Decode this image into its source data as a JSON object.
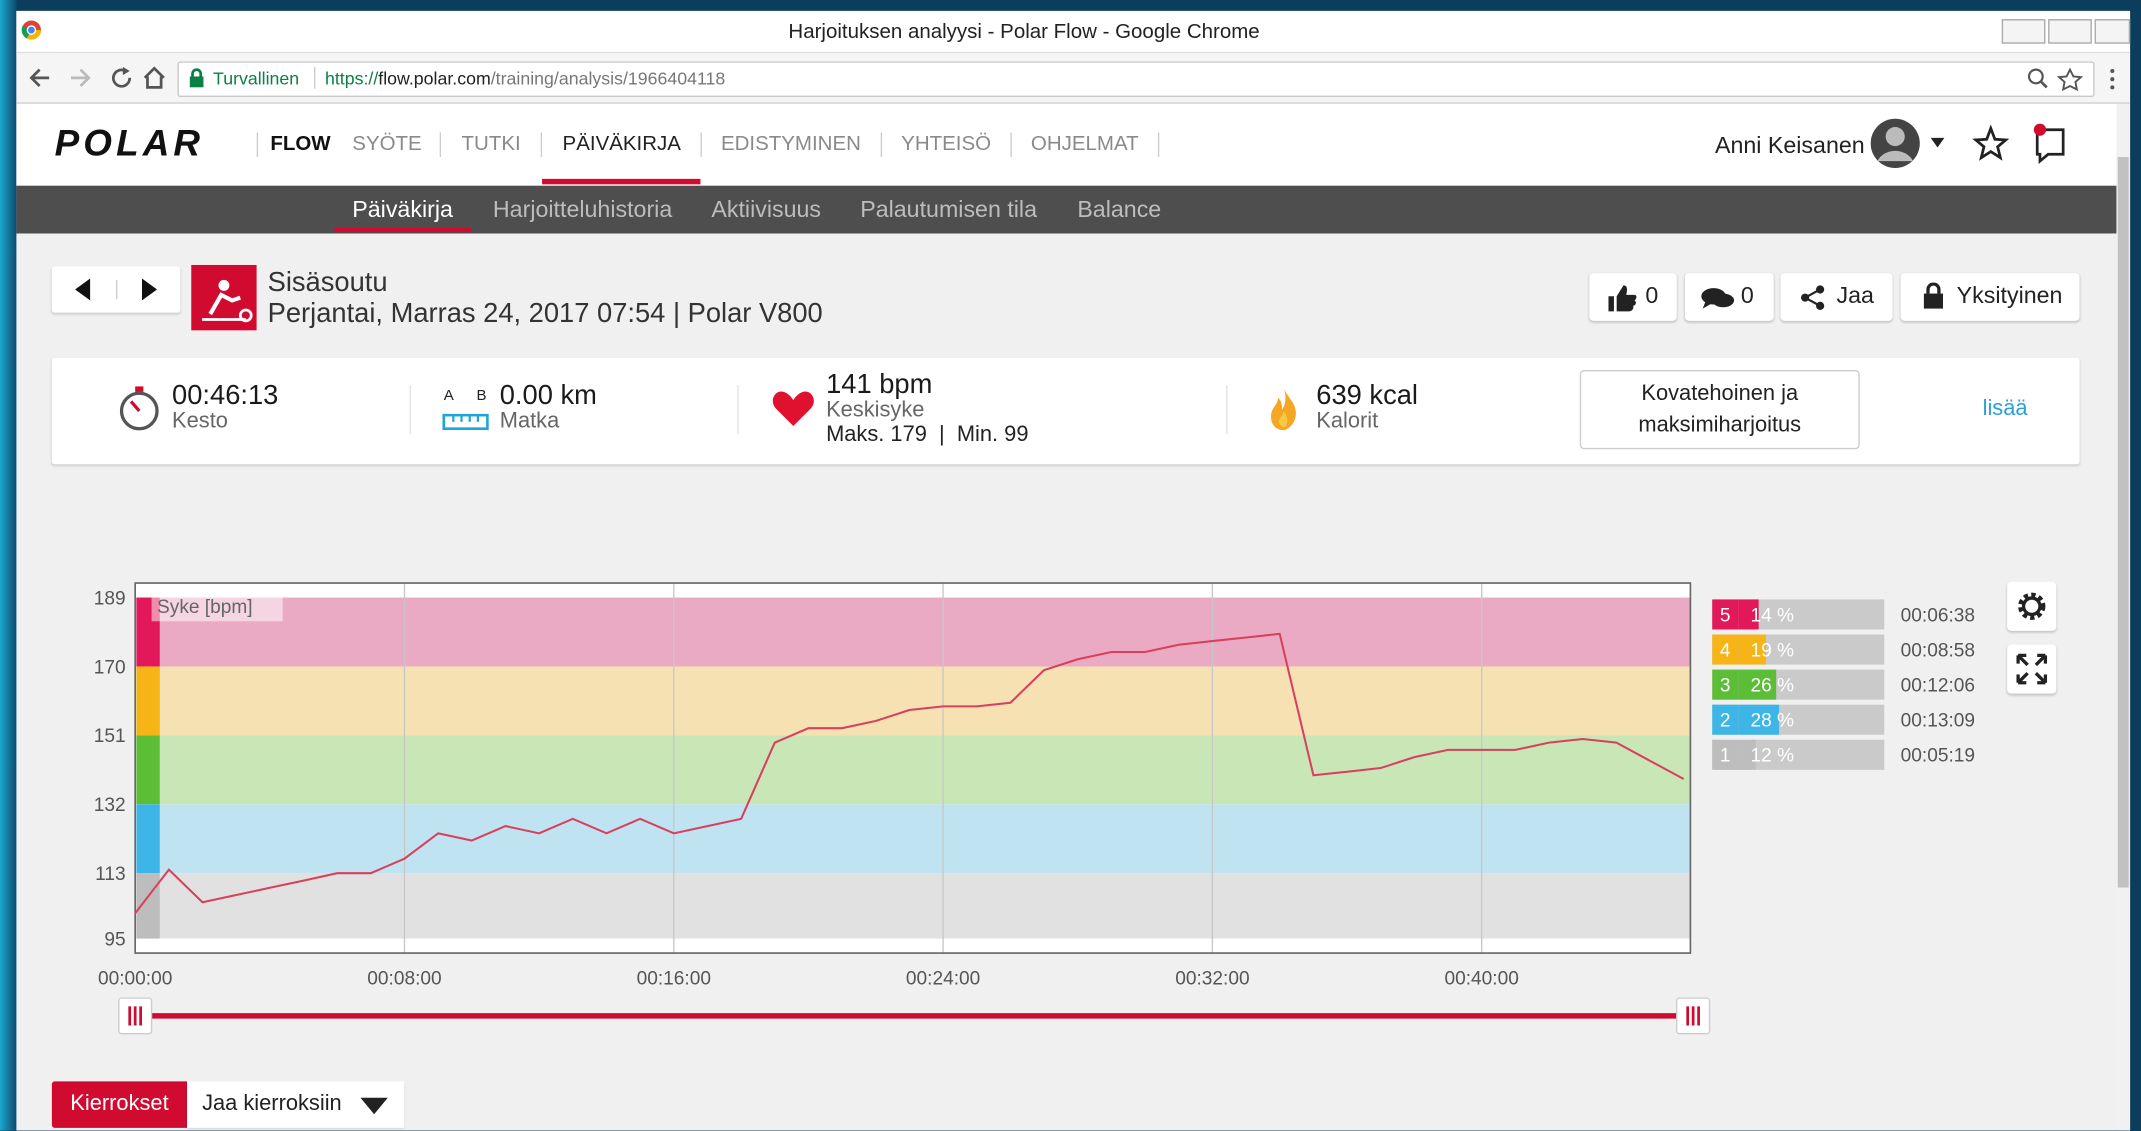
{
  "browser": {
    "window_title": "Harjoituksen analyysi - Polar Flow - Google Chrome",
    "secure_label": "Turvallinen",
    "url_scheme": "https://",
    "url_host": "flow.polar.com",
    "url_path": "/training/analysis/1966404118"
  },
  "header": {
    "logo": "POLAR",
    "app": "FLOW",
    "nav": [
      "SYÖTE",
      "TUTKI",
      "PÄIVÄKIRJA",
      "EDISTYMINEN",
      "YHTEISÖ",
      "OHJELMAT"
    ],
    "user": "Anni Keisanen"
  },
  "subnav": [
    "Päiväkirja",
    "Harjoitteluhistoria",
    "Aktiivisuus",
    "Palautumisen tila",
    "Balance"
  ],
  "workout": {
    "sport": "Sisäsoutu",
    "date_device": "Perjantai, Marras 24, 2017 07:54 | Polar V800",
    "likes": 0,
    "comments": 0,
    "share": "Jaa",
    "privacy": "Yksityinen"
  },
  "summary": {
    "duration": "00:46:13",
    "duration_label": "Kesto",
    "distance_a": "A",
    "distance_b": "B",
    "distance": "0.00 km",
    "distance_label": "Matka",
    "avg_hr": "141 bpm",
    "avg_hr_label": "Keskisyke",
    "max_hr": "Maks. 179",
    "min_hr": "Min. 99",
    "calories": "639 kcal",
    "calories_label": "Kalorit",
    "benefit": "Kovatehoinen ja maksimiharjoitus",
    "more": "lisää"
  },
  "chart_data": {
    "type": "line",
    "y_label": "Syke [bpm]",
    "color": "#d8405e",
    "x": [
      0,
      1,
      2,
      3,
      4,
      5,
      6,
      7,
      8,
      9,
      10,
      11,
      12,
      13,
      14,
      15,
      16,
      17,
      18,
      19,
      20,
      21,
      22,
      23,
      24,
      25,
      26,
      27,
      28,
      29,
      30,
      31,
      32,
      33,
      34,
      35,
      36,
      37,
      38,
      39,
      40,
      41,
      42,
      43,
      44,
      45,
      46
    ],
    "values": [
      102,
      114,
      105,
      107,
      109,
      111,
      113,
      113,
      117,
      124,
      122,
      126,
      124,
      128,
      124,
      128,
      124,
      126,
      128,
      149,
      153,
      153,
      155,
      158,
      159,
      159,
      160,
      169,
      172,
      174,
      174,
      176,
      177,
      178,
      179,
      140,
      141,
      142,
      145,
      147,
      147,
      147,
      149,
      150,
      149,
      144,
      139
    ],
    "xlim": [
      0,
      46.2
    ],
    "xticks": [
      {
        "value": 0,
        "label": "00:00:00"
      },
      {
        "value": 8,
        "label": "00:08:00"
      },
      {
        "value": 16,
        "label": "00:16:00"
      },
      {
        "value": 24,
        "label": "00:24:00"
      },
      {
        "value": 32,
        "label": "00:32:00"
      },
      {
        "value": 40,
        "label": "00:40:00"
      }
    ],
    "ylim": [
      91,
      193
    ],
    "yticks": [
      95,
      113,
      132,
      151,
      170,
      189
    ],
    "grid": true,
    "zones": {
      "names": [
        5,
        4,
        3,
        2,
        1
      ],
      "values": [
        14,
        19,
        26,
        28,
        12
      ],
      "value_labels": [
        "14 %",
        "19 %",
        "26 %",
        "28 %",
        "12 %"
      ],
      "times": [
        "00:06:38",
        "00:08:58",
        "00:12:06",
        "00:13:09",
        "00:05:19"
      ],
      "colors": [
        "#e2185b",
        "#f6b417",
        "#5cbd36",
        "#3db5e6",
        "#bdbdbd"
      ],
      "band_colors": [
        "#eaaac4",
        "#f5e1b1",
        "#c9e6b6",
        "#bfe3f1",
        "#e1e1e1"
      ]
    }
  },
  "laps": {
    "button": "Kierrokset",
    "dropdown": "Jaa kierroksiin"
  }
}
